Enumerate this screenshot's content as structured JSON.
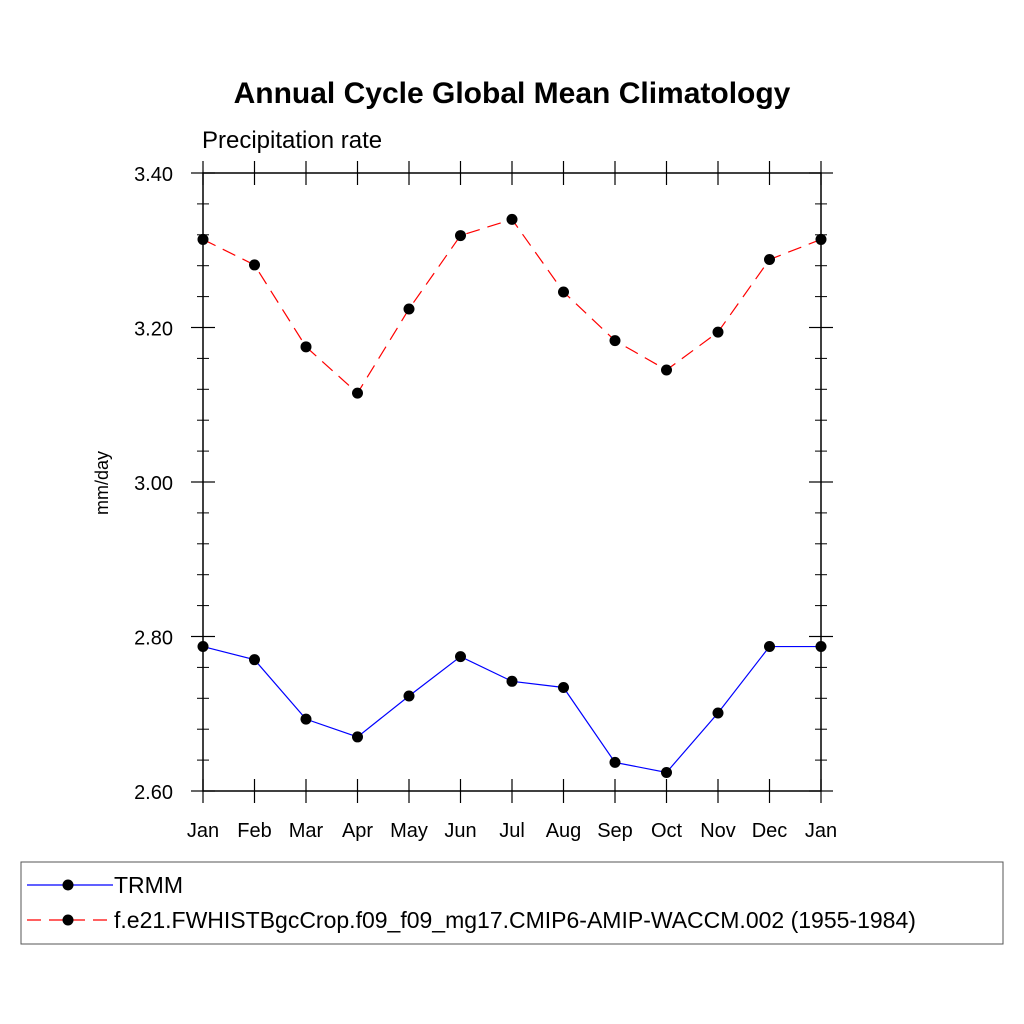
{
  "chart_data": {
    "type": "line",
    "title": "Annual Cycle Global Mean Climatology",
    "subtitle": "Precipitation rate",
    "ylabel": "mm/day",
    "xlabel": "",
    "categories": [
      "Jan",
      "Feb",
      "Mar",
      "Apr",
      "May",
      "Jun",
      "Jul",
      "Aug",
      "Sep",
      "Oct",
      "Nov",
      "Dec",
      "Jan"
    ],
    "ylim": [
      2.6,
      3.4
    ],
    "yticks": [
      "2.60",
      "2.80",
      "3.00",
      "3.20",
      "3.40"
    ],
    "ytick_values": [
      2.6,
      2.8,
      3.0,
      3.2,
      3.4
    ],
    "grid": false,
    "legend_position": "bottom",
    "series": [
      {
        "name": "TRMM",
        "color": "#0000ff",
        "dash": "solid",
        "values": [
          2.787,
          2.77,
          2.693,
          2.67,
          2.723,
          2.774,
          2.742,
          2.734,
          2.637,
          2.624,
          2.701,
          2.787,
          2.787
        ]
      },
      {
        "name": "f.e21.FWHISTBgcCrop.f09_f09_mg17.CMIP6-AMIP-WACCM.002 (1955-1984)",
        "color": "#ff0000",
        "dash": "dashed",
        "values": [
          3.314,
          3.281,
          3.175,
          3.115,
          3.224,
          3.319,
          3.34,
          3.246,
          3.183,
          3.145,
          3.194,
          3.288,
          3.314
        ]
      }
    ]
  }
}
